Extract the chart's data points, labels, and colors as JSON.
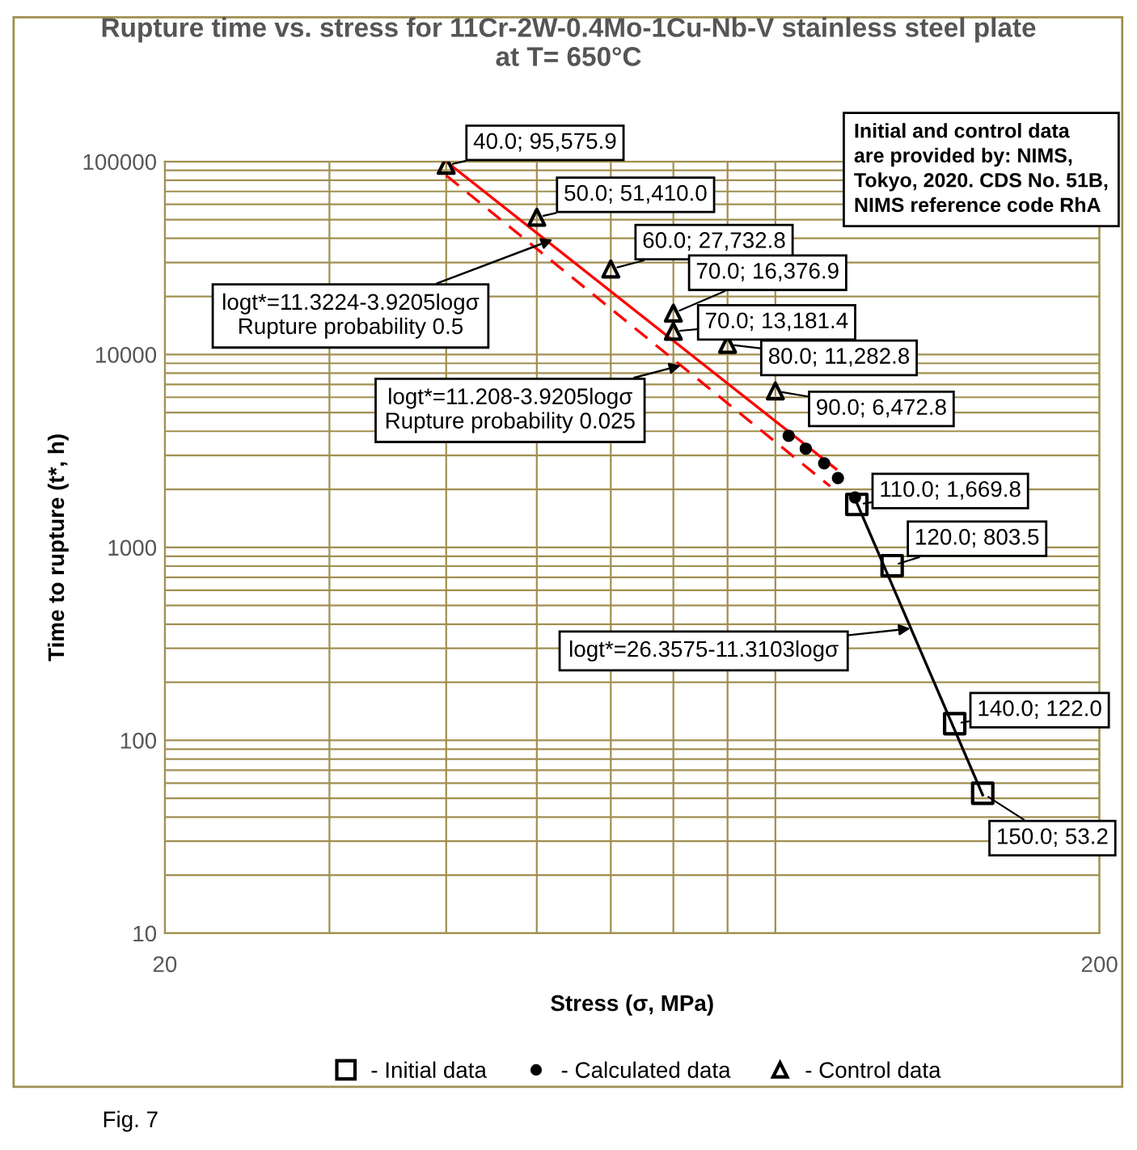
{
  "chart_data": {
    "type": "scatter",
    "title": "Rupture time vs. stress for 11Cr-2W-0.4Mo-1Cu-Nb-V stainless steel plate\nat T= 650°C",
    "xlabel": "Stress (σ, MPa)",
    "ylabel": "Time to rupture (t*, h)",
    "log": "xy",
    "xlim": [
      20,
      200
    ],
    "xticks": [
      20,
      200
    ],
    "ylim": [
      10,
      100000
    ],
    "yticks": [
      10,
      100,
      1000,
      10000,
      100000
    ],
    "grid": true,
    "legend": "bottom",
    "series": [
      {
        "type": "line",
        "color": "#ff0000",
        "line_style": "solid",
        "marker": "none",
        "x": [
          40,
          104.5
        ],
        "values": [
          100000,
          2550
        ]
      },
      {
        "type": "line",
        "color": "#ff0000",
        "line_style": "dashed",
        "marker": "none",
        "x": [
          40,
          103
        ],
        "values": [
          84700,
          2075
        ]
      },
      {
        "type": "line",
        "color": "#000000",
        "line_style": "solid",
        "marker": "none",
        "x": [
          110,
          150
        ],
        "values": [
          1700,
          52
        ]
      },
      {
        "name": "- Initial data",
        "color": "#000000",
        "marker": "square",
        "x": [
          110,
          120,
          140,
          150
        ],
        "values": [
          1669.8,
          803.5,
          122.0,
          53.2
        ],
        "value_labels": [
          "110.0; 1,669.8",
          "120.0; 803.5",
          "140.0; 122.0",
          "150.0; 53.2"
        ]
      },
      {
        "name": "- Calculated data",
        "color": "#000000",
        "marker": "circle",
        "x": [
          93,
          97,
          101.5,
          105,
          109.5
        ],
        "values": [
          3790,
          3250,
          2730,
          2290,
          1815
        ]
      },
      {
        "name": "- Control data",
        "color": "#000000",
        "marker": "triangle",
        "x": [
          40,
          50,
          60,
          70,
          70,
          80,
          90
        ],
        "values": [
          95575.9,
          51410.0,
          27732.8,
          16376.9,
          13181.4,
          11282.8,
          6472.8
        ],
        "value_labels": [
          "40.0; 95,575.9",
          "50.0; 51,410.0",
          "60.0; 27,732.8",
          "70.0; 16,376.9",
          "70.0; 13,181.4",
          "80.0; 11,282.8",
          "90.0; 6,472.8"
        ]
      }
    ],
    "annotations": [
      {
        "text": "logt*=11.3224-3.9205logσ\nRupture probability 0.5",
        "x": 52,
        "y": 39400
      },
      {
        "text": "logt*=11.208-3.9205logσ\nRupture probability 0.025",
        "x": 71.3,
        "y": 8770
      },
      {
        "text": "logt*=26.3575-11.3103logσ",
        "x": 125.5,
        "y": 380
      },
      "Initial and control data\nare provided by: NIMS,\nTokyo, 2020. CDS No. 51B,\nNIMS reference code RhA",
      "Fig. 7"
    ]
  }
}
